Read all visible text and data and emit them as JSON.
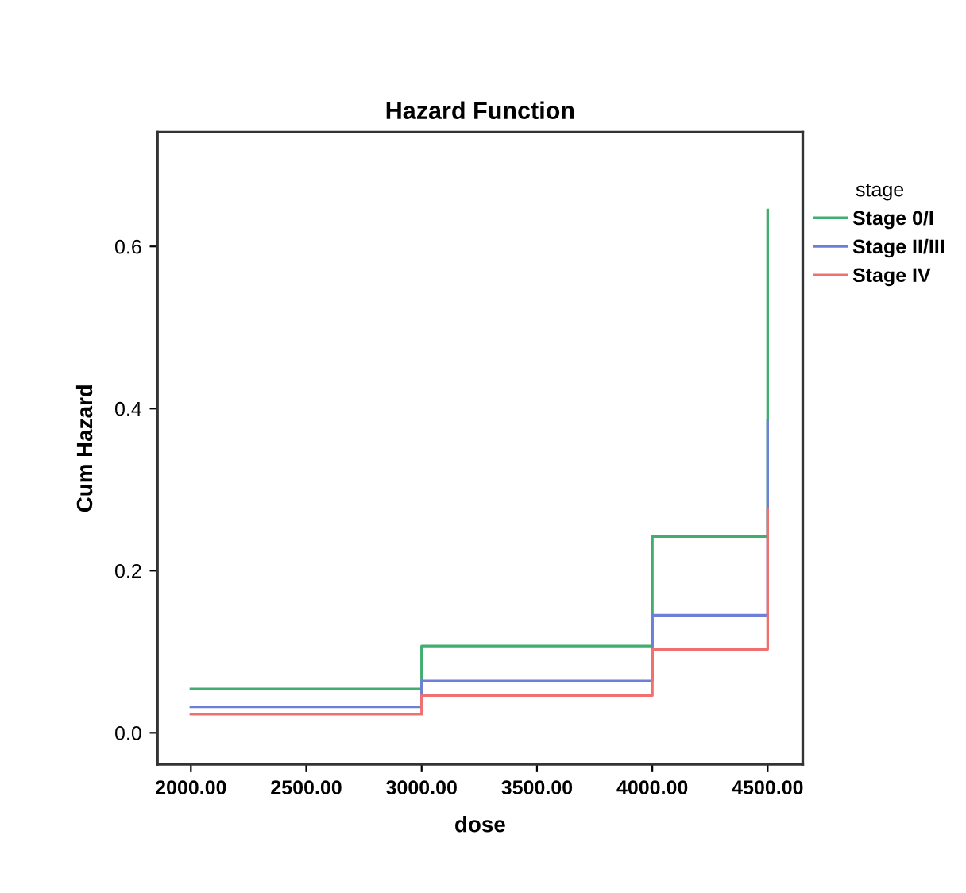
{
  "chart_data": {
    "type": "step",
    "title": "Hazard Function",
    "xlabel": "dose",
    "ylabel": "Cum Hazard",
    "legend_title": "stage",
    "x": [
      2000,
      3000,
      4000,
      4500
    ],
    "series": [
      {
        "name": "Stage 0/I",
        "color": "#3fae6e",
        "values": [
          0.054,
          0.107,
          0.242,
          0.645
        ]
      },
      {
        "name": "Stage II/III",
        "color": "#6d7fd6",
        "values": [
          0.032,
          0.064,
          0.145,
          0.385
        ]
      },
      {
        "name": "Stage IV",
        "color": "#f07070",
        "values": [
          0.023,
          0.046,
          0.103,
          0.275
        ]
      }
    ],
    "xlim": [
      1855,
      4652
    ],
    "ylim": [
      -0.039,
      0.741
    ],
    "xticks": [
      {
        "value": 2000,
        "label": "2000.00"
      },
      {
        "value": 2500,
        "label": "2500.00"
      },
      {
        "value": 3000,
        "label": "3000.00"
      },
      {
        "value": 3500,
        "label": "3500.00"
      },
      {
        "value": 4000,
        "label": "4000.00"
      },
      {
        "value": 4500,
        "label": "4500.00"
      }
    ],
    "yticks": [
      {
        "value": 0,
        "label": "0.0"
      },
      {
        "value": 0.2,
        "label": "0.2"
      },
      {
        "value": 0.4,
        "label": "0.4"
      },
      {
        "value": 0.6,
        "label": "0.6"
      }
    ],
    "grid": false,
    "legend": "right",
    "marker": "none",
    "line_style": "solid"
  }
}
